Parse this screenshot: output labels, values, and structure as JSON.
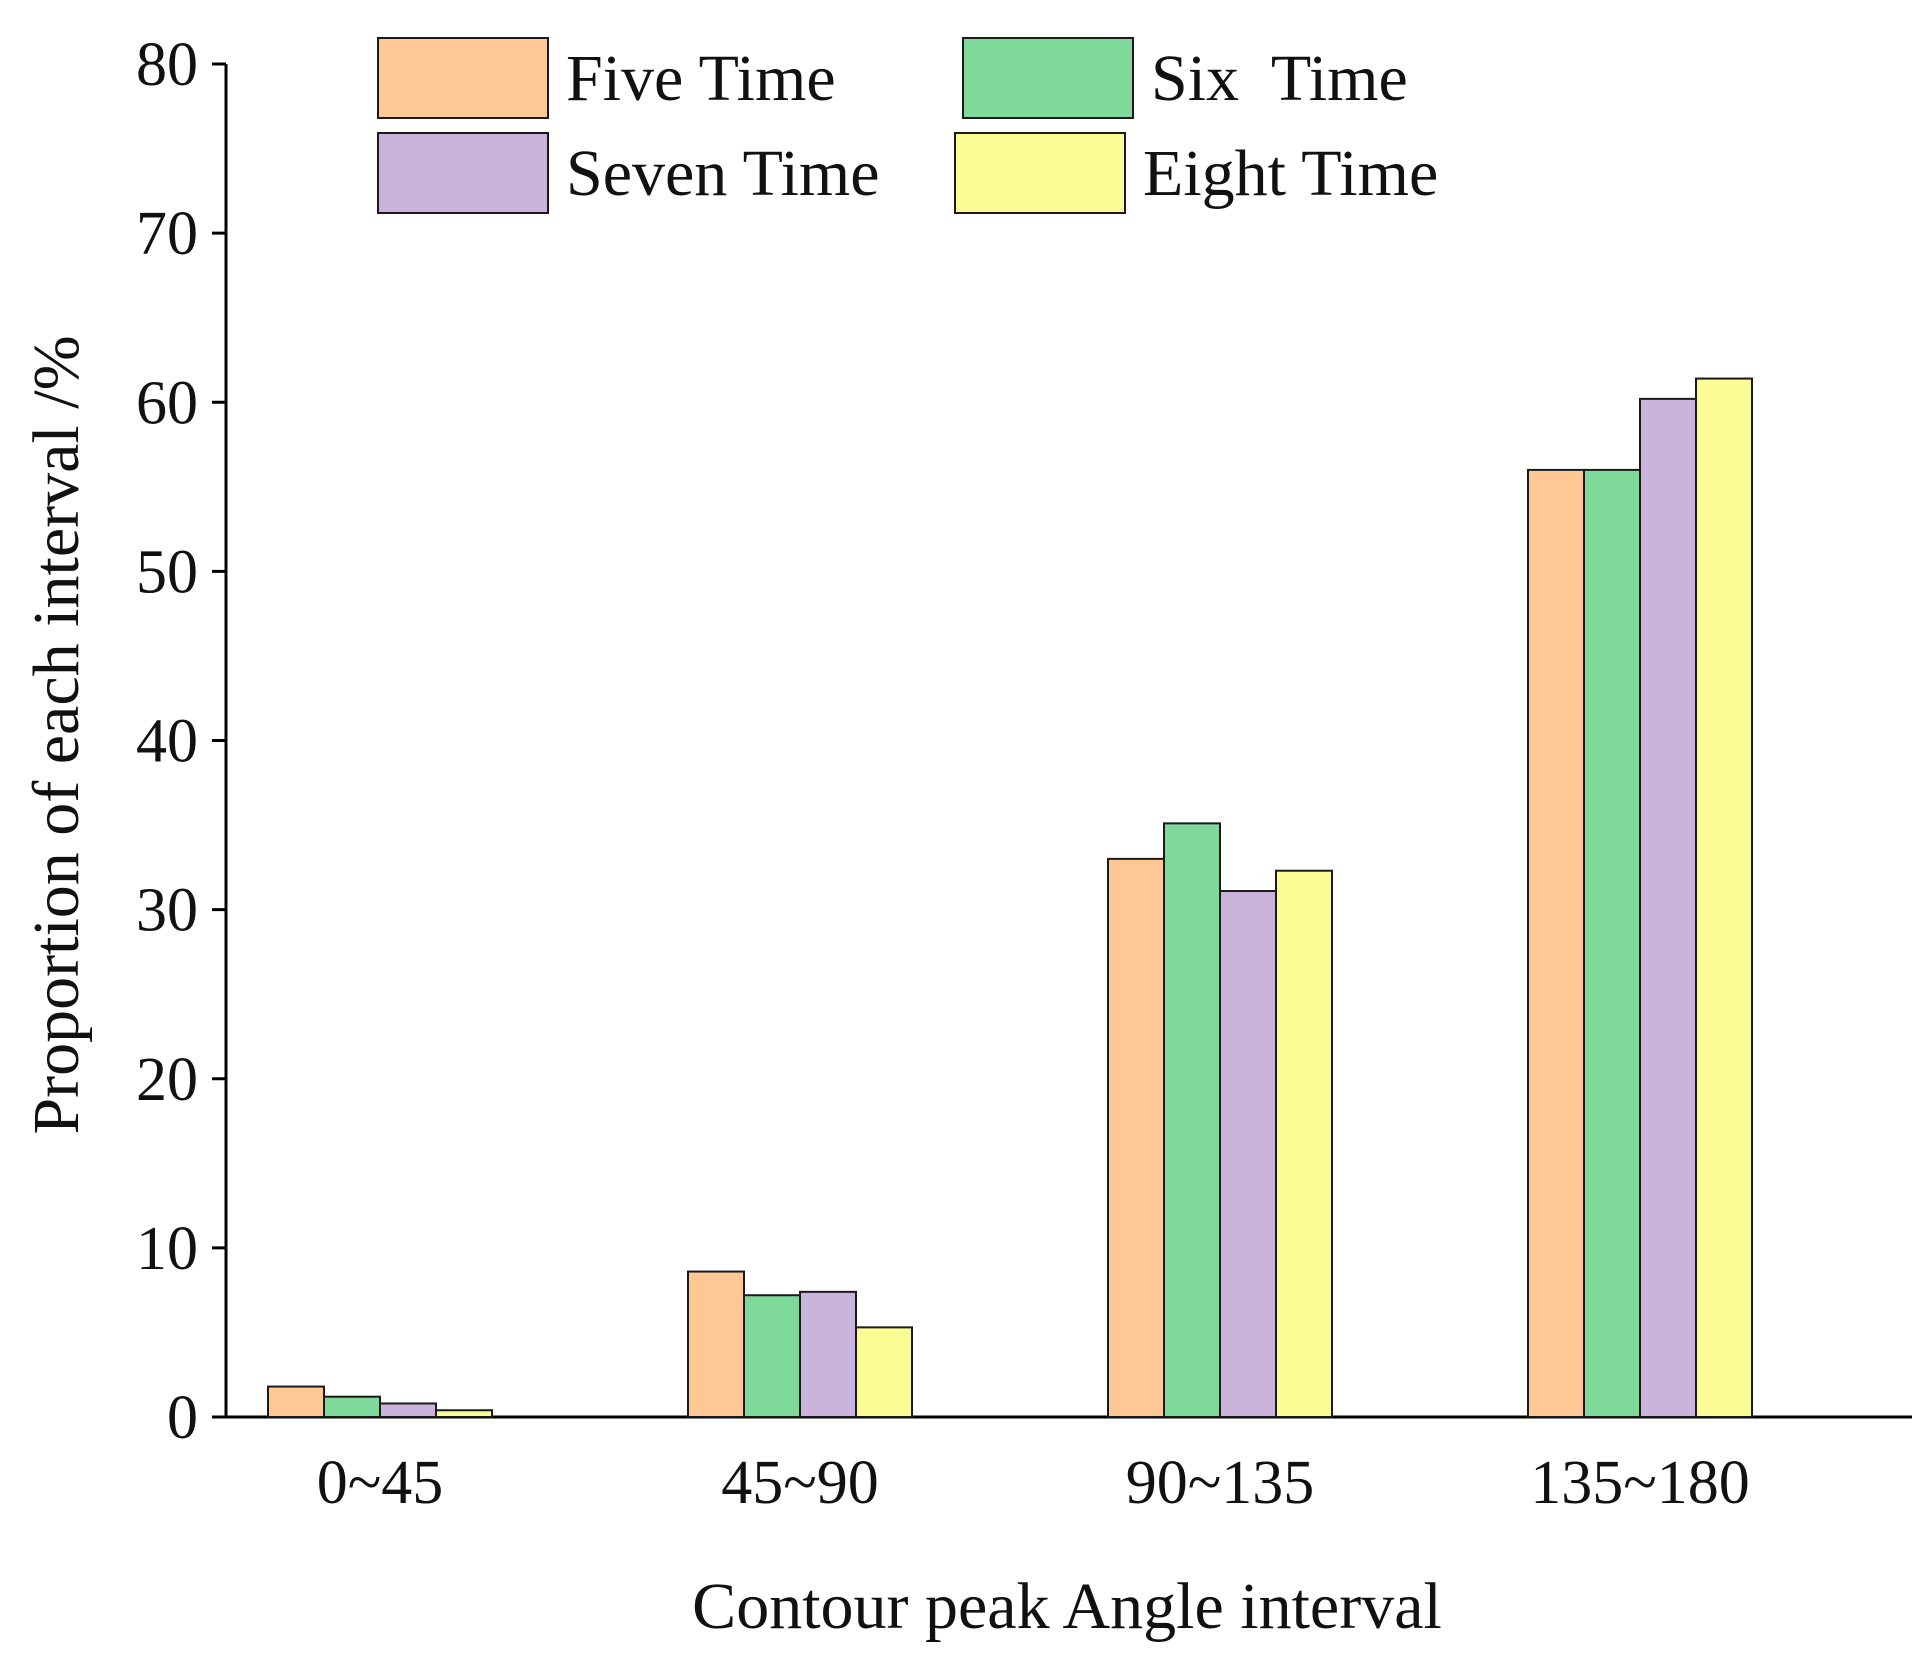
{
  "chart_data": {
    "type": "bar",
    "title": "",
    "xlabel": "Contour peak Angle interval",
    "ylabel": "Proportion of each interval /%",
    "ylim": [
      0,
      80
    ],
    "yticks": [
      0,
      10,
      20,
      30,
      40,
      50,
      60,
      70,
      80
    ],
    "categories": [
      "0~45",
      "45~90",
      "90~135",
      "135~180"
    ],
    "series": [
      {
        "name": "Five Time",
        "color": "#FDC894",
        "values": [
          1.8,
          8.6,
          33.0,
          56.0
        ]
      },
      {
        "name": "Six  Time",
        "color": "#7FD99B",
        "values": [
          1.2,
          7.2,
          35.1,
          56.0
        ]
      },
      {
        "name": "Seven Time",
        "color": "#C9B3DB",
        "values": [
          0.8,
          7.4,
          31.1,
          60.2
        ]
      },
      {
        "name": "Eight Time",
        "color": "#FCFC94",
        "values": [
          0.4,
          5.3,
          32.3,
          61.4
        ]
      }
    ],
    "legend_position": "top",
    "grid": false
  }
}
